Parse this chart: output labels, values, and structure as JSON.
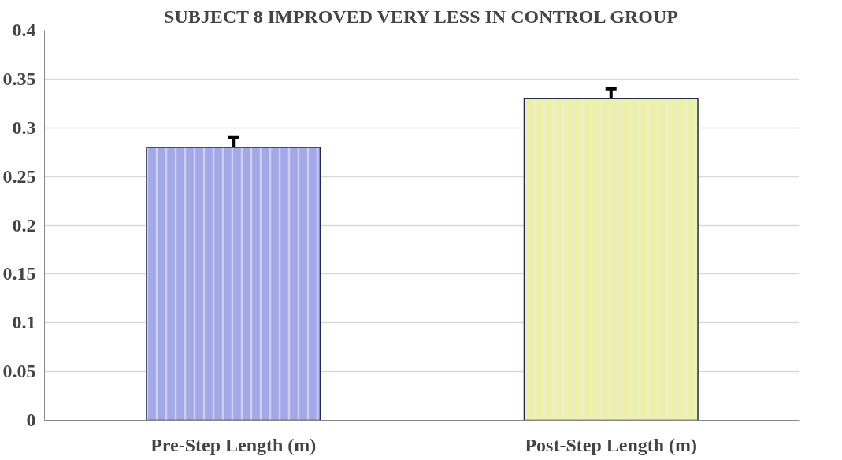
{
  "chart_data": {
    "type": "bar",
    "title": "SUBJECT 8 IMPROVED VERY LESS IN CONTROL GROUP",
    "categories": [
      "Pre-Step Length (m)",
      "Post-Step Length (m)"
    ],
    "values": [
      0.28,
      0.33
    ],
    "colors": [
      "#a3a8e8",
      "#ecf0a8"
    ],
    "errors": [
      [
        0.28,
        0.29
      ],
      [
        0.33,
        0.34
      ]
    ],
    "ylim": [
      0,
      0.4
    ],
    "yticks": [
      0,
      0.05,
      0.1,
      0.15,
      0.2,
      0.25,
      0.3,
      0.35,
      0.4
    ],
    "grid": "y"
  }
}
